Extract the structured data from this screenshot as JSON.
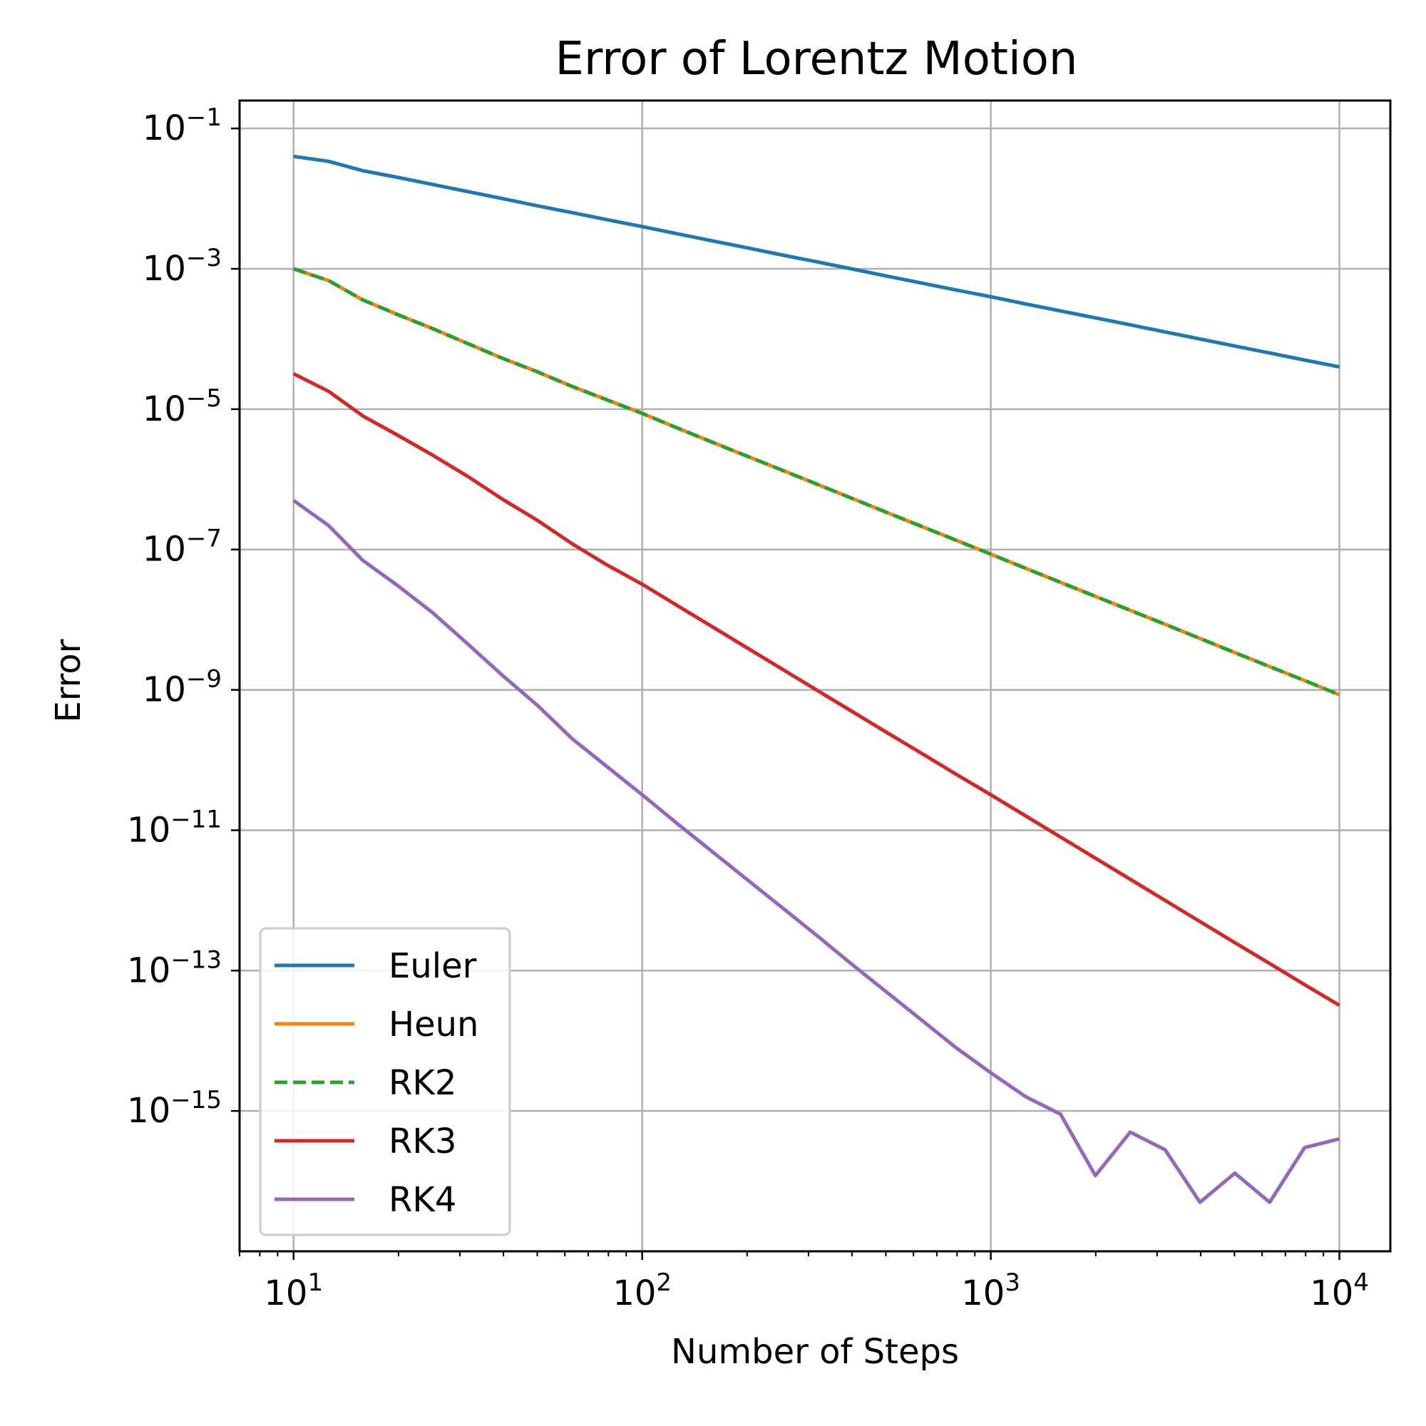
{
  "chart_data": {
    "type": "line",
    "title": "Error of Lorentz Motion",
    "xlabel": "Number of Steps",
    "ylabel": "Error",
    "x_scale": "log",
    "y_scale": "log",
    "xlim": [
      7,
      14000
    ],
    "ylim": [
      1e-17,
      0.25
    ],
    "grid": true,
    "legend_position": "lower-left",
    "x_ticks": [
      {
        "value": 10,
        "base": "10",
        "exp": "1"
      },
      {
        "value": 100,
        "base": "10",
        "exp": "2"
      },
      {
        "value": 1000,
        "base": "10",
        "exp": "3"
      },
      {
        "value": 10000,
        "base": "10",
        "exp": "4"
      }
    ],
    "y_ticks": [
      {
        "value": 0.1,
        "base": "10",
        "exp": "−1"
      },
      {
        "value": 0.001,
        "base": "10",
        "exp": "−3"
      },
      {
        "value": 1e-05,
        "base": "10",
        "exp": "−5"
      },
      {
        "value": 1e-07,
        "base": "10",
        "exp": "−7"
      },
      {
        "value": 1e-09,
        "base": "10",
        "exp": "−9"
      },
      {
        "value": 1e-11,
        "base": "10",
        "exp": "−11"
      },
      {
        "value": 1e-13,
        "base": "10",
        "exp": "−13"
      },
      {
        "value": 1e-15,
        "base": "10",
        "exp": "−15"
      }
    ],
    "series": [
      {
        "name": "Euler",
        "color": "#1f77b4",
        "dashed": false,
        "x": [
          10,
          12.6,
          15.8,
          20,
          25.1,
          31.6,
          39.8,
          50.1,
          63.1,
          79.4,
          100,
          125.9,
          158.5,
          199.5,
          251.2,
          316.2,
          398.1,
          501.2,
          631,
          794.3,
          1000,
          1258.9,
          1584.9,
          1995.3,
          2511.9,
          3162.3,
          3981.1,
          5011.9,
          6309.6,
          7943.3,
          10000
        ],
        "y": [
          0.04,
          0.034,
          0.025,
          0.02,
          0.0159,
          0.0126,
          0.01,
          0.0079,
          0.0063,
          0.005,
          0.004,
          0.00316,
          0.00251,
          0.002,
          0.00158,
          0.00126,
          0.001,
          0.00079,
          0.00063,
          0.0005,
          0.0004,
          0.000316,
          0.000251,
          0.0002,
          0.000159,
          0.000126,
          0.0001,
          7.94e-05,
          6.31e-05,
          5.01e-05,
          4e-05
        ]
      },
      {
        "name": "Heun",
        "color": "#ff7f0e",
        "dashed": false,
        "x": [
          10,
          12.6,
          15.8,
          20,
          25.1,
          31.6,
          39.8,
          50.1,
          63.1,
          79.4,
          100,
          125.9,
          158.5,
          199.5,
          251.2,
          316.2,
          398.1,
          501.2,
          631,
          794.3,
          1000,
          1258.9,
          1584.9,
          1995.3,
          2511.9,
          3162.3,
          3981.1,
          5011.9,
          6309.6,
          7943.3,
          10000
        ],
        "y": [
          0.001,
          0.00068,
          0.00036,
          0.00022,
          0.00014,
          8.6e-05,
          5.3e-05,
          3.4e-05,
          2.1e-05,
          1.35e-05,
          8.7e-06,
          5.4e-06,
          3.4e-06,
          2.15e-06,
          1.36e-06,
          8.6e-07,
          5.4e-07,
          3.4e-07,
          2.15e-07,
          1.36e-07,
          8.6e-08,
          5.4e-08,
          3.4e-08,
          2.15e-08,
          1.36e-08,
          8.6e-09,
          5.4e-09,
          3.4e-09,
          2.15e-09,
          1.36e-09,
          8.5e-10
        ]
      },
      {
        "name": "RK2",
        "color": "#2ca02c",
        "dashed": true,
        "x": [
          10,
          12.6,
          15.8,
          20,
          25.1,
          31.6,
          39.8,
          50.1,
          63.1,
          79.4,
          100,
          125.9,
          158.5,
          199.5,
          251.2,
          316.2,
          398.1,
          501.2,
          631,
          794.3,
          1000,
          1258.9,
          1584.9,
          1995.3,
          2511.9,
          3162.3,
          3981.1,
          5011.9,
          6309.6,
          7943.3,
          10000
        ],
        "y": [
          0.001,
          0.00068,
          0.00036,
          0.00022,
          0.00014,
          8.6e-05,
          5.3e-05,
          3.4e-05,
          2.1e-05,
          1.35e-05,
          8.7e-06,
          5.4e-06,
          3.4e-06,
          2.15e-06,
          1.36e-06,
          8.6e-07,
          5.4e-07,
          3.4e-07,
          2.15e-07,
          1.36e-07,
          8.6e-08,
          5.4e-08,
          3.4e-08,
          2.15e-08,
          1.36e-08,
          8.6e-09,
          5.4e-09,
          3.4e-09,
          2.15e-09,
          1.36e-09,
          8.5e-10
        ]
      },
      {
        "name": "RK3",
        "color": "#d62728",
        "dashed": false,
        "x": [
          10,
          12.6,
          15.8,
          20,
          25.1,
          31.6,
          39.8,
          50.1,
          63.1,
          79.4,
          100,
          125.9,
          158.5,
          199.5,
          251.2,
          316.2,
          398.1,
          501.2,
          631,
          794.3,
          1000,
          1258.9,
          1584.9,
          1995.3,
          2511.9,
          3162.3,
          3981.1,
          5011.9,
          6309.6,
          7943.3,
          10000
        ],
        "y": [
          3.2e-05,
          1.8e-05,
          8e-06,
          4.2e-06,
          2.2e-06,
          1.1e-06,
          5.2e-07,
          2.6e-07,
          1.2e-07,
          6e-08,
          3.2e-08,
          1.6e-08,
          8e-09,
          4e-09,
          2e-09,
          1e-09,
          5e-10,
          2.5e-10,
          1.26e-10,
          6.3e-11,
          3.2e-11,
          1.6e-11,
          8e-12,
          4e-12,
          2e-12,
          1e-12,
          5e-13,
          2.5e-13,
          1.26e-13,
          6.3e-14,
          3.2e-14
        ]
      },
      {
        "name": "RK4",
        "color": "#9467bd",
        "dashed": false,
        "x": [
          10,
          12.6,
          15.8,
          20,
          25.1,
          31.6,
          39.8,
          50.1,
          63.1,
          79.4,
          100,
          125.9,
          158.5,
          199.5,
          251.2,
          316.2,
          398.1,
          501.2,
          631,
          794.3,
          1000,
          1258.9,
          1584.9,
          1995.3,
          2511.9,
          3162.3,
          3981.1,
          5011.9,
          6309.6,
          7943.3,
          10000
        ],
        "y": [
          5e-07,
          2.2e-07,
          7e-08,
          3e-08,
          1.25e-08,
          4.5e-09,
          1.6e-09,
          6e-10,
          2e-10,
          8e-11,
          3.2e-11,
          1.25e-11,
          5e-12,
          2e-12,
          8e-13,
          3.2e-13,
          1.25e-13,
          5e-14,
          2e-14,
          8e-15,
          3.5e-15,
          1.6e-15,
          9e-16,
          1.2e-16,
          5e-16,
          2.8e-16,
          5e-17,
          1.3e-16,
          5e-17,
          3e-16,
          4e-16
        ]
      }
    ]
  }
}
